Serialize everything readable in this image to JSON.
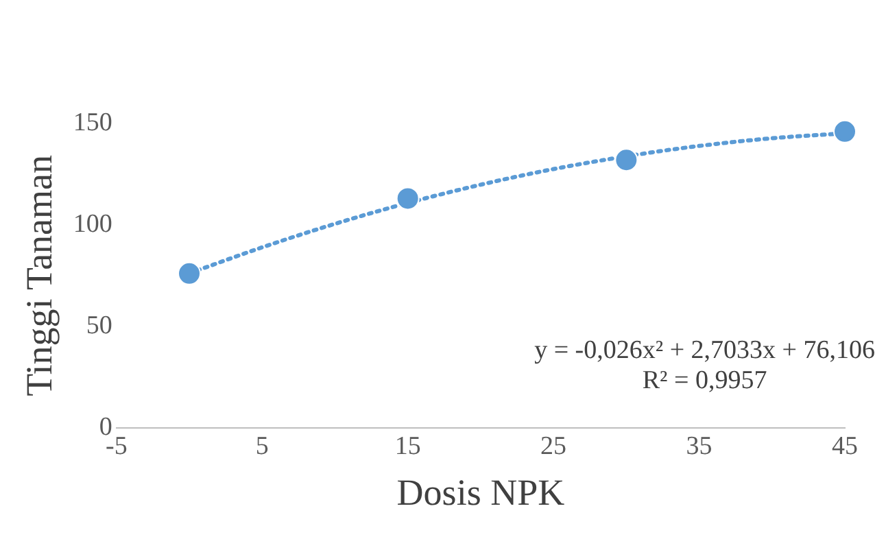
{
  "chart_data": {
    "type": "scatter",
    "xlabel": "Dosis NPK",
    "ylabel": "Tinggi Tanaman",
    "x": [
      0,
      15,
      30,
      45
    ],
    "series": [
      {
        "type": "scatter",
        "color": "#5b9bd5",
        "values": [
          76,
          113,
          132,
          146
        ],
        "marker": "circle"
      },
      {
        "type": "line",
        "color": "#5b9bd5",
        "line_style": "dotted",
        "marker": "none",
        "x": [
          0,
          5,
          10,
          15,
          20,
          25,
          30,
          35,
          40,
          45
        ],
        "values": [
          76.1,
          88.9,
          100.5,
          110.8,
          119.8,
          127.5,
          133.8,
          138.9,
          142.7,
          145.1
        ]
      }
    ],
    "xlim": [
      -5,
      45
    ],
    "xticks": [
      -5,
      5,
      15,
      25,
      35,
      45
    ],
    "ylim": [
      0,
      150
    ],
    "yticks": [
      0,
      50,
      100,
      150
    ],
    "grid": false,
    "legend": false,
    "annotations": [
      "y = -0,026x² + 2,7033x + 76,106",
      "R² = 0,9957"
    ]
  }
}
